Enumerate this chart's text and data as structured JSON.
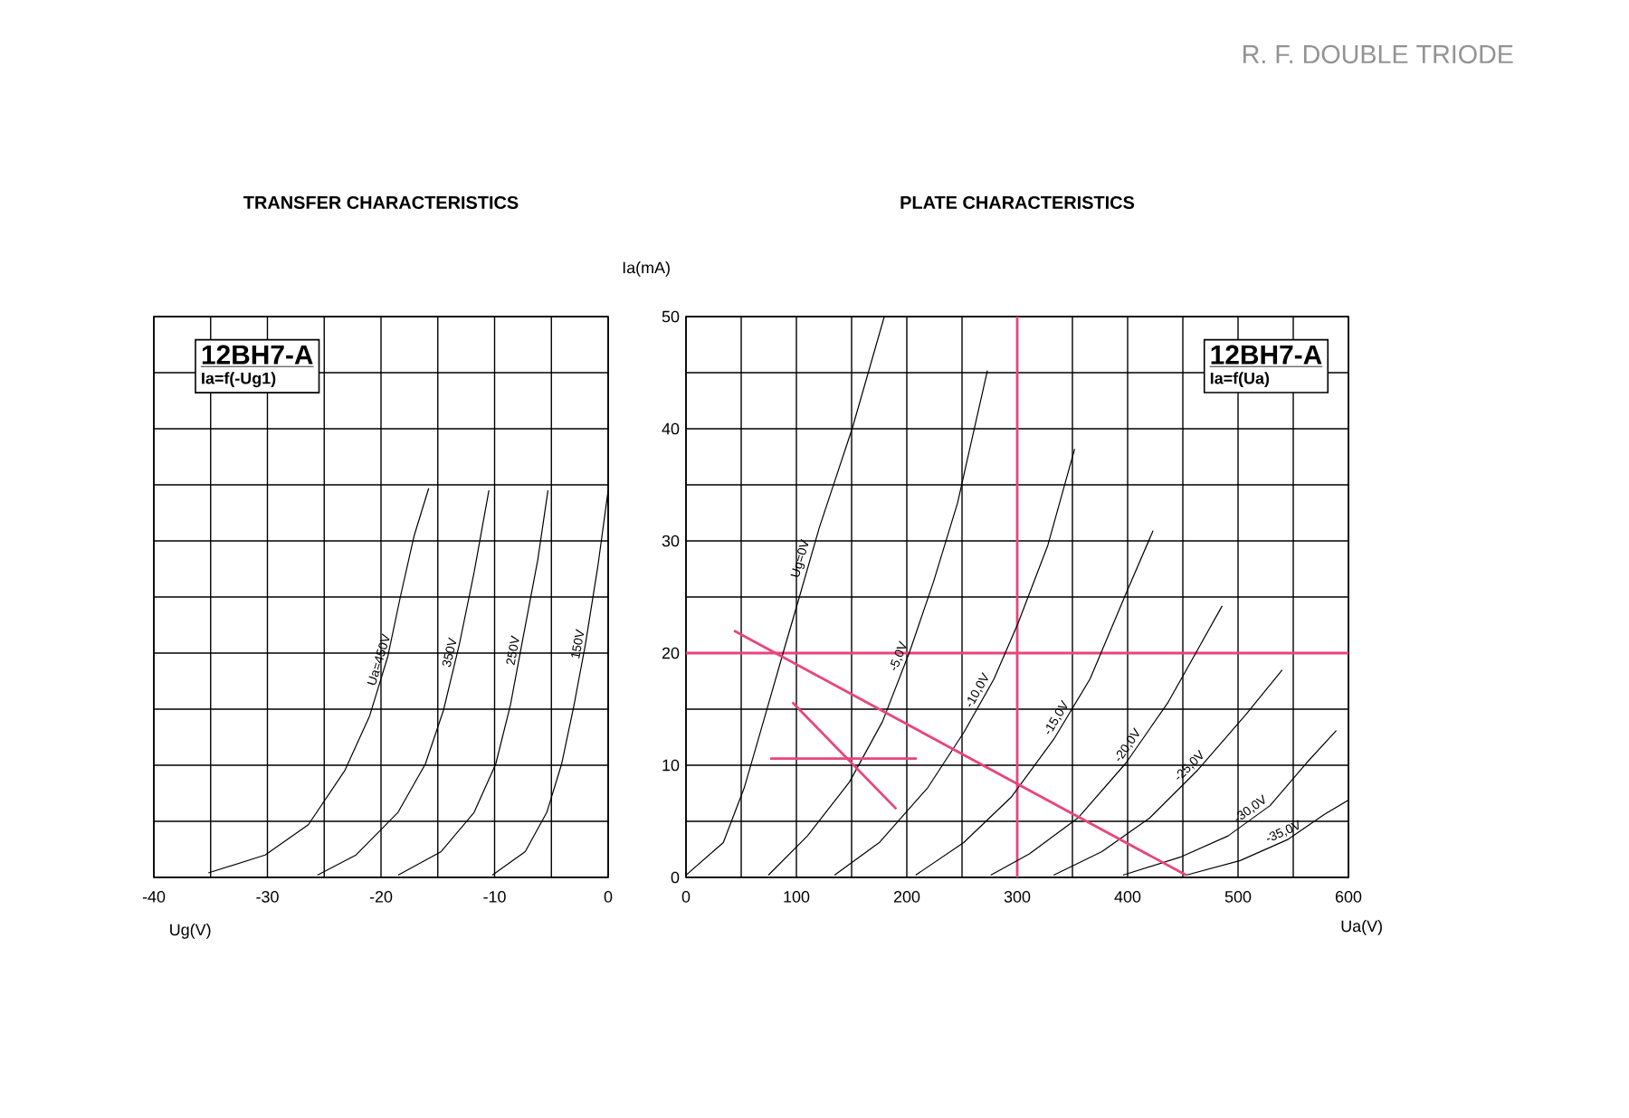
{
  "chart_data": [
    {
      "type": "line",
      "title": "TRANSFER CHARACTERISTICS",
      "xlabel": "Ug(V)",
      "annotations": [
        "12BH7-A",
        "Ia=f(-Ug1)",
        "R. F. DOUBLE TRIODE"
      ],
      "xlim": [
        -40,
        0
      ],
      "ylim": [
        0,
        50
      ],
      "xticks": [
        -40,
        {
          "value": -35,
          "label": null
        },
        -30,
        {
          "value": -25,
          "label": null
        },
        -20,
        {
          "value": -15,
          "label": null
        },
        -10,
        {
          "value": -5,
          "label": null
        },
        0
      ],
      "yticks": [
        0,
        5,
        10,
        15,
        20,
        25,
        30,
        35,
        40,
        45,
        50
      ],
      "tick_labels": "x",
      "grid": true,
      "marker": "none",
      "line_style": "solid",
      "series": [
        {
          "name": "Ua=450V",
          "color": "#000000",
          "x": [
            -35.2,
            -30.2,
            -26.4,
            -23.2,
            -21.0,
            -19.4,
            -18.3,
            -17.1,
            -15.8
          ],
          "values": [
            0.4,
            2.0,
            4.7,
            9.5,
            14.4,
            19.7,
            25.0,
            30.4,
            34.7
          ]
        },
        {
          "name": "350V",
          "color": "#000000",
          "x": [
            -25.6,
            -22.2,
            -18.5,
            -16.1,
            -14.5,
            -13.1,
            -11.8,
            -10.5
          ],
          "values": [
            0.2,
            2.0,
            5.8,
            10.1,
            14.9,
            20.8,
            27.2,
            34.5
          ]
        },
        {
          "name": "250V",
          "color": "#000000",
          "x": [
            -18.5,
            -14.7,
            -11.8,
            -9.9,
            -8.6,
            -7.6,
            -6.2,
            -5.3
          ],
          "values": [
            0.2,
            2.3,
            5.8,
            10.1,
            15.4,
            20.8,
            28.3,
            34.5
          ]
        },
        {
          "name": "150V",
          "color": "#000000",
          "x": [
            -10.2,
            -7.3,
            -5.4,
            -4.1,
            -3.0,
            -2.0,
            -0.9,
            0
          ],
          "values": [
            0.2,
            2.3,
            5.8,
            10.1,
            15.4,
            20.8,
            27.8,
            34.5
          ]
        }
      ]
    },
    {
      "type": "line",
      "title": "PLATE CHARACTERISTICS",
      "xlabel": "Ua(V)",
      "ylabel": "Ia(mA)",
      "annotations": [
        "12BH7-A",
        "Ia=f(Ua)"
      ],
      "xlim": [
        0,
        600
      ],
      "ylim": [
        0,
        50
      ],
      "xticks": [
        0,
        {
          "value": 50,
          "label": null
        },
        100,
        {
          "value": 150,
          "label": null
        },
        200,
        {
          "value": 250,
          "label": null
        },
        300,
        {
          "value": 350,
          "label": null
        },
        400,
        {
          "value": 450,
          "label": null
        },
        500,
        {
          "value": 550,
          "label": null
        },
        600
      ],
      "yticks": [
        0,
        {
          "value": 5,
          "label": null
        },
        10,
        {
          "value": 15,
          "label": null
        },
        20,
        {
          "value": 25,
          "label": null
        },
        30,
        {
          "value": 35,
          "label": null
        },
        40,
        {
          "value": 45,
          "label": null
        },
        50
      ],
      "grid": true,
      "marker": "none",
      "line_style": "solid",
      "ref_lines": [
        {
          "axis": "x",
          "value": 300,
          "color": "#e8457a"
        },
        {
          "axis": "y",
          "value": 20,
          "color": "#e8457a"
        }
      ],
      "series": [
        {
          "name": "Ug=0V",
          "color": "#000000",
          "x": [
            0,
            33.8,
            52.8,
            71.9,
            88.2,
            101.8,
            120.8,
            150.8,
            179.6
          ],
          "values": [
            0.2,
            3.1,
            8.0,
            14.5,
            20.1,
            24.7,
            31.2,
            40.1,
            50
          ]
        },
        {
          "name": "-5,0V",
          "color": "#000000",
          "x": [
            74.6,
            110,
            148,
            178,
            202.5,
            224,
            246,
            273
          ],
          "values": [
            0.2,
            3.7,
            8.5,
            13.9,
            20.1,
            26.3,
            33.4,
            45.2
          ]
        },
        {
          "name": "-10,0V",
          "color": "#000000",
          "x": [
            134.5,
            175,
            219,
            251.5,
            279,
            300.5,
            327.7,
            352
          ],
          "values": [
            0.2,
            3.1,
            8.0,
            12.9,
            17.7,
            22.6,
            29.6,
            38.2
          ]
        },
        {
          "name": "-15,0V",
          "color": "#000000",
          "x": [
            208,
            251.5,
            295,
            333,
            366,
            398.5,
            423
          ],
          "values": [
            0.2,
            3.1,
            7.2,
            12.3,
            17.7,
            25.3,
            30.9
          ]
        },
        {
          "name": "-20,0V",
          "color": "#000000",
          "x": [
            276,
            311,
            355,
            398.5,
            436.6,
            464,
            485.6
          ],
          "values": [
            0.2,
            2.1,
            5.3,
            10.2,
            15.6,
            20.4,
            24.2
          ]
        },
        {
          "name": "-25,0V",
          "color": "#000000",
          "x": [
            333,
            376.7,
            420,
            463.8,
            507,
            540
          ],
          "values": [
            0.2,
            2.3,
            5.3,
            9.6,
            14.5,
            18.5
          ]
        },
        {
          "name": "-30,0V",
          "color": "#000000",
          "x": [
            395.8,
            447.5,
            491,
            529,
            562,
            589
          ],
          "values": [
            0.2,
            1.8,
            3.7,
            6.4,
            10.2,
            13.1
          ]
        },
        {
          "name": "-35,0V",
          "color": "#000000",
          "x": [
            453,
            502,
            545.5,
            578,
            600
          ],
          "values": [
            0.2,
            1.5,
            3.4,
            5.6,
            6.9
          ]
        },
        {
          "color": "#e8457a",
          "x": [
            43.5,
            453
          ],
          "values": [
            22.0,
            0.2
          ]
        },
        {
          "color": "#e8457a",
          "x": [
            96.4,
            190.5
          ],
          "values": [
            15.6,
            6.1
          ]
        },
        {
          "color": "#e8457a",
          "x": [
            76.2,
            209
          ],
          "values": [
            10.6,
            10.6
          ]
        }
      ]
    }
  ]
}
